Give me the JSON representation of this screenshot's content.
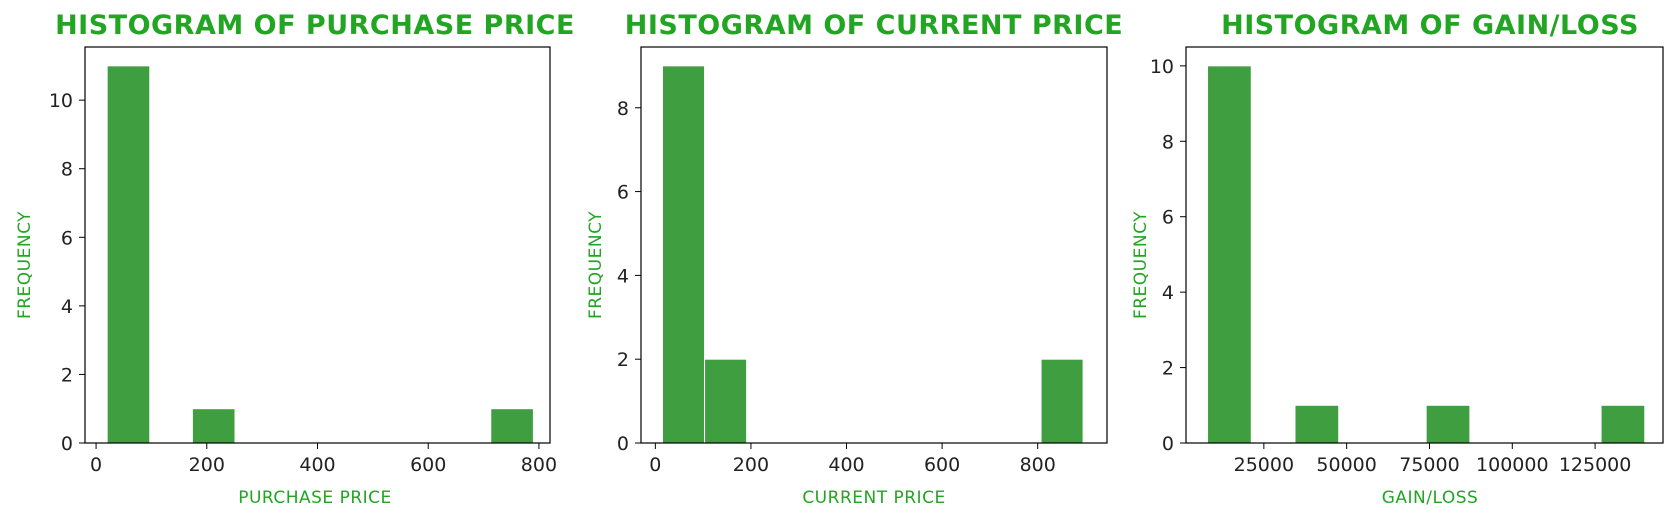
{
  "colors": {
    "bar_fill": "#3f9e3f",
    "bar_edge": "#ffffff",
    "title_text": "#22a522",
    "label_text": "#22a522",
    "axis": "#000000",
    "tick_text": "#222222"
  },
  "chart_data": [
    {
      "type": "bar",
      "title": "HISTOGRAM OF PURCHASE PRICE",
      "xlabel": "PURCHASE PRICE",
      "ylabel": "FREQUENCY",
      "xlim": [
        -20,
        820
      ],
      "ylim": [
        0,
        11.55
      ],
      "xticks": [
        0,
        200,
        400,
        600,
        800
      ],
      "xtick_labels": [
        "0",
        "200",
        "400",
        "600",
        "800"
      ],
      "yticks": [
        0,
        2,
        4,
        6,
        8,
        10
      ],
      "ytick_labels": [
        "0",
        "2",
        "4",
        "6",
        "8",
        "10"
      ],
      "bins": [
        {
          "x0": 20,
          "x1": 97,
          "count": 11
        },
        {
          "x0": 97,
          "x1": 174,
          "count": 0
        },
        {
          "x0": 174,
          "x1": 251,
          "count": 1
        },
        {
          "x0": 251,
          "x1": 328,
          "count": 0
        },
        {
          "x0": 328,
          "x1": 405,
          "count": 0
        },
        {
          "x0": 405,
          "x1": 482,
          "count": 0
        },
        {
          "x0": 482,
          "x1": 559,
          "count": 0
        },
        {
          "x0": 559,
          "x1": 636,
          "count": 0
        },
        {
          "x0": 636,
          "x1": 713,
          "count": 0
        },
        {
          "x0": 713,
          "x1": 790,
          "count": 1
        }
      ],
      "grid": false
    },
    {
      "type": "bar",
      "title": "HISTOGRAM OF CURRENT PRICE",
      "xlabel": "CURRENT PRICE",
      "ylabel": "FREQUENCY",
      "xlim": [
        -30,
        945
      ],
      "ylim": [
        0,
        9.45
      ],
      "xticks": [
        0,
        200,
        400,
        600,
        800
      ],
      "xtick_labels": [
        "0",
        "200",
        "400",
        "600",
        "800"
      ],
      "yticks": [
        0,
        2,
        4,
        6,
        8
      ],
      "ytick_labels": [
        "0",
        "2",
        "4",
        "6",
        "8"
      ],
      "bins": [
        {
          "x0": 15,
          "x1": 103,
          "count": 9
        },
        {
          "x0": 103,
          "x1": 191,
          "count": 2
        },
        {
          "x0": 191,
          "x1": 279,
          "count": 0
        },
        {
          "x0": 279,
          "x1": 367,
          "count": 0
        },
        {
          "x0": 367,
          "x1": 455,
          "count": 0
        },
        {
          "x0": 455,
          "x1": 543,
          "count": 0
        },
        {
          "x0": 543,
          "x1": 631,
          "count": 0
        },
        {
          "x0": 631,
          "x1": 719,
          "count": 0
        },
        {
          "x0": 719,
          "x1": 807,
          "count": 0
        },
        {
          "x0": 807,
          "x1": 895,
          "count": 2
        }
      ],
      "grid": false
    },
    {
      "type": "bar",
      "title": "HISTOGRAM OF GAIN/LOSS",
      "xlabel": "GAIN/LOSS",
      "ylabel": "FREQUENCY",
      "xlim": [
        1500,
        145500
      ],
      "ylim": [
        0,
        10.5
      ],
      "xticks": [
        25000,
        50000,
        75000,
        100000,
        125000
      ],
      "xtick_labels": [
        "25000",
        "50000",
        "75000",
        "100000",
        "125000"
      ],
      "yticks": [
        0,
        2,
        4,
        6,
        8,
        10
      ],
      "ytick_labels": [
        "0",
        "2",
        "4",
        "6",
        "8",
        "10"
      ],
      "bins": [
        {
          "x0": 8000,
          "x1": 21200,
          "count": 10
        },
        {
          "x0": 21200,
          "x1": 34400,
          "count": 0
        },
        {
          "x0": 34400,
          "x1": 47600,
          "count": 1
        },
        {
          "x0": 47600,
          "x1": 60800,
          "count": 0
        },
        {
          "x0": 60800,
          "x1": 74000,
          "count": 0
        },
        {
          "x0": 74000,
          "x1": 87200,
          "count": 1
        },
        {
          "x0": 87200,
          "x1": 100400,
          "count": 0
        },
        {
          "x0": 100400,
          "x1": 113600,
          "count": 0
        },
        {
          "x0": 113600,
          "x1": 126800,
          "count": 0
        },
        {
          "x0": 126800,
          "x1": 140000,
          "count": 1
        }
      ],
      "grid": false
    }
  ]
}
